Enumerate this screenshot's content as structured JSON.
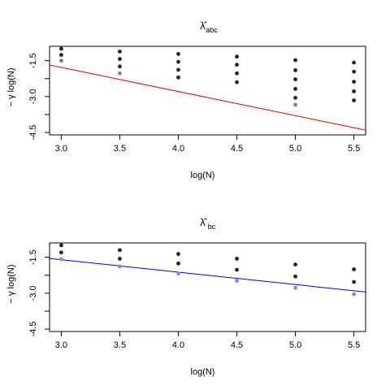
{
  "chart_data": [
    {
      "type": "scatter",
      "title_symbol": "λ̂",
      "title_subscript": "abc",
      "xlabel": "log(N)",
      "ylabel": "− γ log(N)",
      "xlim": [
        2.9,
        5.6
      ],
      "ylim": [
        -4.6,
        -0.9
      ],
      "x_ticks": [
        "3.0",
        "3.5",
        "4.0",
        "4.5",
        "5.0",
        "5.5"
      ],
      "y_ticks": [
        "-1.5",
        "-3.0",
        "-4.5"
      ],
      "line_color": "#dd0000",
      "line": [
        {
          "x": 2.9,
          "y": -1.68
        },
        {
          "x": 5.6,
          "y": -4.4
        }
      ],
      "series": [
        {
          "color": "#222222",
          "points": [
            {
              "x": 3.0,
              "y": -1.0
            },
            {
              "x": 3.0,
              "y": -1.26
            },
            {
              "x": 3.5,
              "y": -1.12
            },
            {
              "x": 3.5,
              "y": -1.43
            },
            {
              "x": 3.5,
              "y": -1.74
            },
            {
              "x": 4.0,
              "y": -1.22
            },
            {
              "x": 4.0,
              "y": -1.55
            },
            {
              "x": 4.0,
              "y": -1.88
            },
            {
              "x": 4.0,
              "y": -2.2
            },
            {
              "x": 4.5,
              "y": -1.33
            },
            {
              "x": 4.5,
              "y": -1.67
            },
            {
              "x": 4.5,
              "y": -2.03
            },
            {
              "x": 4.5,
              "y": -2.4
            },
            {
              "x": 5.0,
              "y": -1.48
            },
            {
              "x": 5.0,
              "y": -1.9
            },
            {
              "x": 5.0,
              "y": -2.28
            },
            {
              "x": 5.0,
              "y": -2.68
            },
            {
              "x": 5.0,
              "y": -3.05
            },
            {
              "x": 5.5,
              "y": -1.58
            },
            {
              "x": 5.5,
              "y": -1.96
            },
            {
              "x": 5.5,
              "y": -2.38
            },
            {
              "x": 5.5,
              "y": -2.78
            },
            {
              "x": 5.5,
              "y": -3.16
            }
          ]
        },
        {
          "color": "#808080",
          "points": [
            {
              "x": 3.0,
              "y": -1.5
            },
            {
              "x": 3.5,
              "y": -2.03
            },
            {
              "x": 5.0,
              "y": -3.34
            }
          ]
        }
      ]
    },
    {
      "type": "scatter",
      "title_symbol": "λ̂",
      "title_subscript": "bc",
      "xlabel": "log(N)",
      "ylabel": "− γ log(N)",
      "xlim": [
        2.9,
        5.6
      ],
      "ylim": [
        -4.6,
        -0.9
      ],
      "x_ticks": [
        "3.0",
        "3.5",
        "4.0",
        "4.5",
        "5.0",
        "5.5"
      ],
      "y_ticks": [
        "-1.5",
        "-3.0",
        "-4.5"
      ],
      "line_color": "#0000cc",
      "line": [
        {
          "x": 2.9,
          "y": -1.55
        },
        {
          "x": 5.6,
          "y": -2.95
        }
      ],
      "series": [
        {
          "color": "#222222",
          "points": [
            {
              "x": 3.0,
              "y": -1.0
            },
            {
              "x": 3.0,
              "y": -1.3
            },
            {
              "x": 3.5,
              "y": -1.2
            },
            {
              "x": 3.5,
              "y": -1.56
            },
            {
              "x": 4.0,
              "y": -1.36
            },
            {
              "x": 4.0,
              "y": -1.76
            },
            {
              "x": 4.5,
              "y": -1.56
            },
            {
              "x": 4.5,
              "y": -2.02
            },
            {
              "x": 5.0,
              "y": -1.8
            },
            {
              "x": 5.0,
              "y": -2.3
            },
            {
              "x": 5.5,
              "y": -2.0
            },
            {
              "x": 5.5,
              "y": -2.53
            }
          ]
        },
        {
          "color": "#8888dd",
          "points": [
            {
              "x": 3.0,
              "y": -1.58
            },
            {
              "x": 3.5,
              "y": -1.88
            },
            {
              "x": 4.0,
              "y": -2.18
            },
            {
              "x": 4.5,
              "y": -2.48
            },
            {
              "x": 5.0,
              "y": -2.78
            },
            {
              "x": 5.5,
              "y": -3.04
            }
          ]
        }
      ]
    }
  ]
}
